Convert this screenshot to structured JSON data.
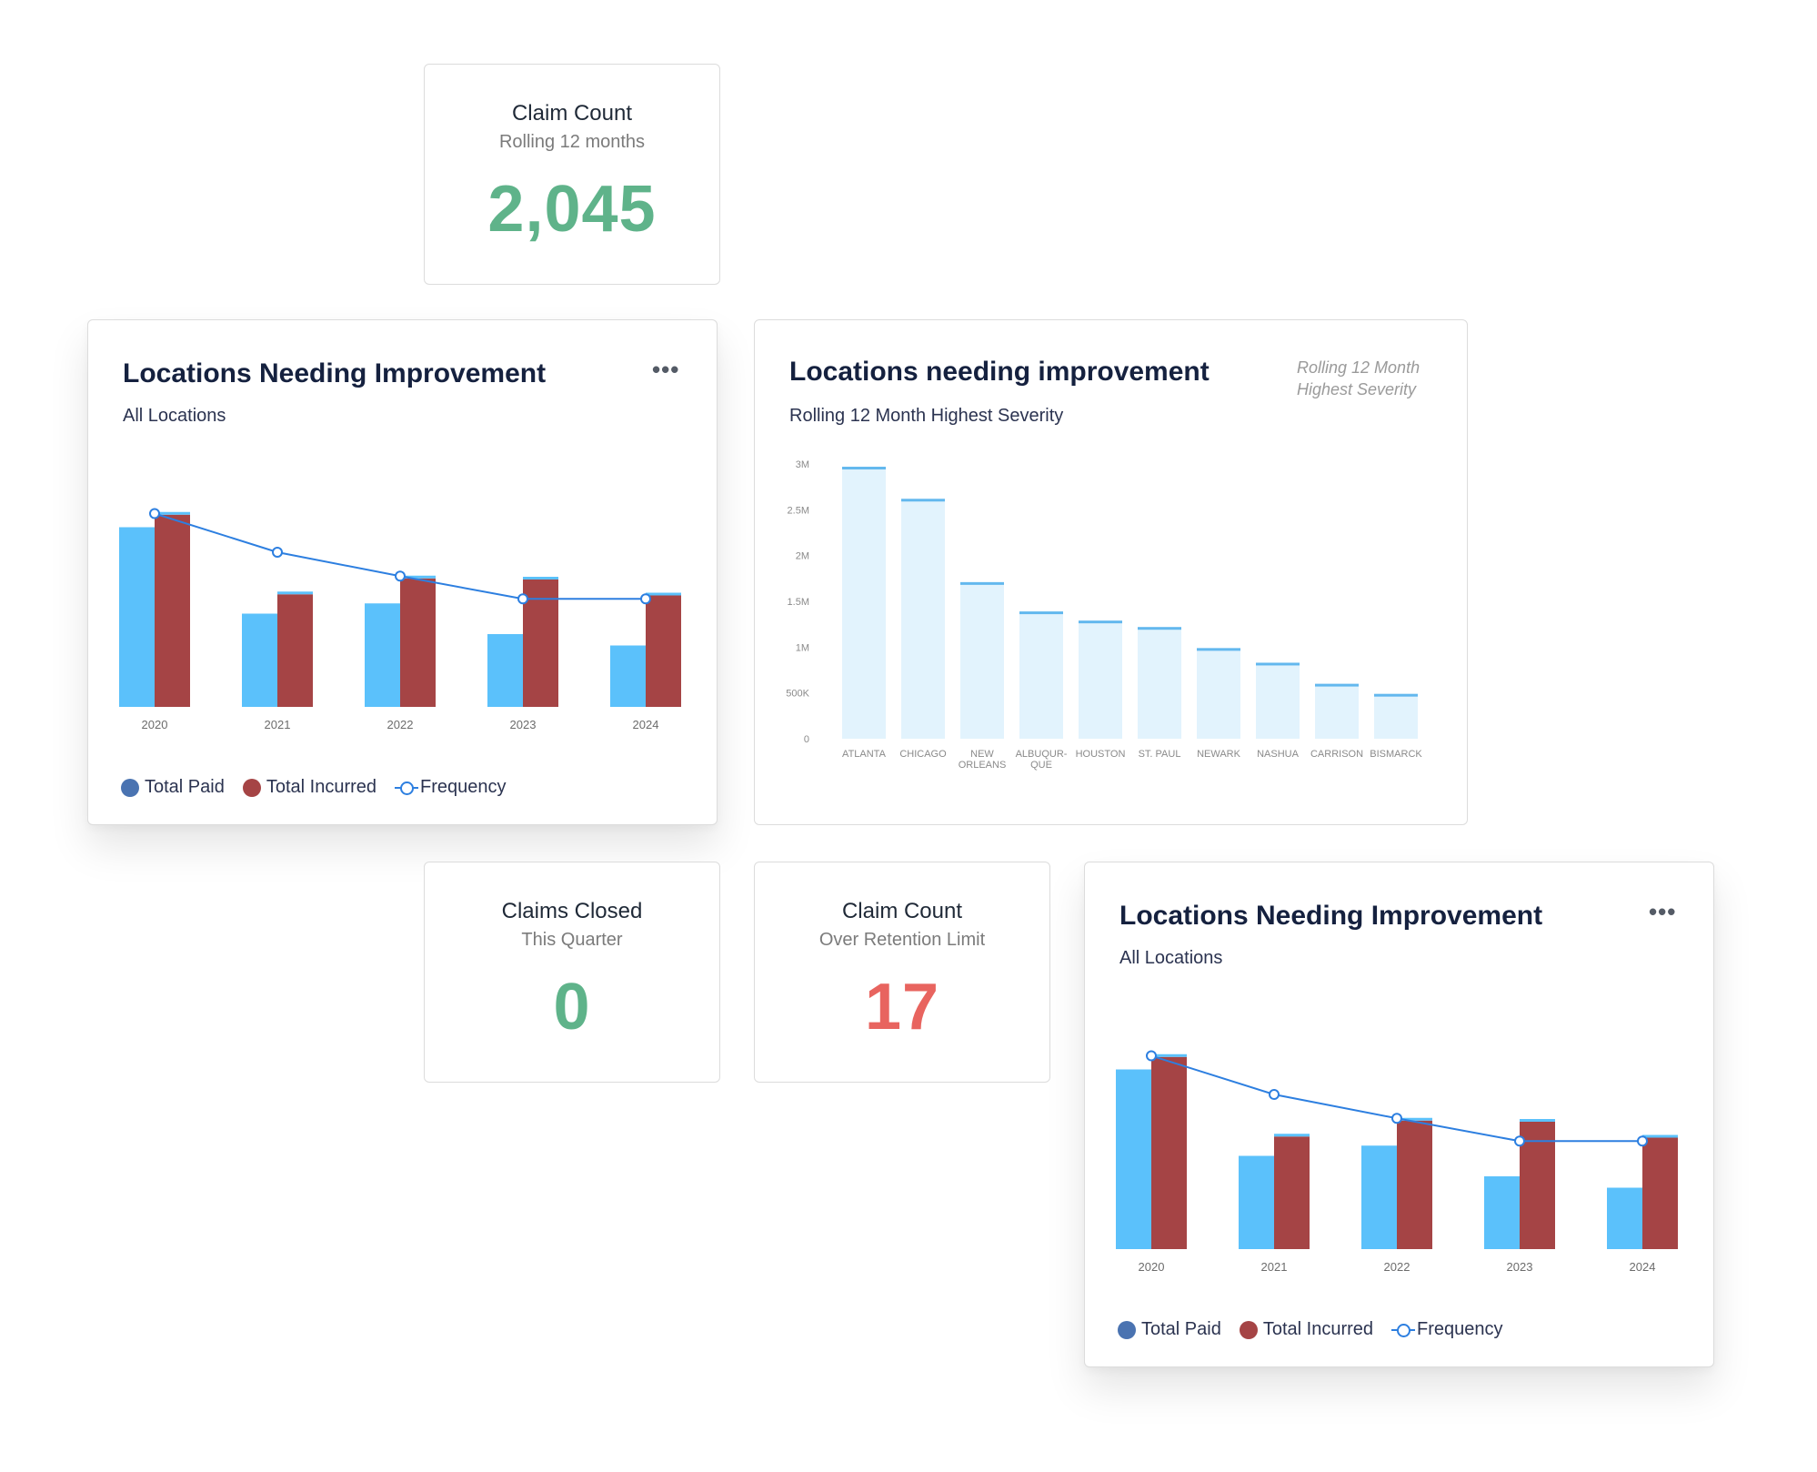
{
  "kpis": {
    "claim_count": {
      "title": "Claim Count",
      "subtitle": "Rolling 12 months",
      "value": "2,045",
      "color": "#5fb38a"
    },
    "claims_closed": {
      "title": "Claims Closed",
      "subtitle": "This Quarter",
      "value": "0",
      "color": "#5fb38a"
    },
    "claim_count_retention": {
      "title": "Claim Count",
      "subtitle": "Over Retention Limit",
      "value": "17",
      "color": "#e8645f"
    }
  },
  "card_a": {
    "title": "Locations Needing Improvement",
    "subtitle": "All Locations",
    "menu_icon": "more-horizontal-icon"
  },
  "card_b": {
    "title": "Locations needing improvement",
    "subtitle": "Rolling 12 Month Highest Severity",
    "note": "Rolling 12 Month Highest Severity"
  },
  "card_c": {
    "title": "Locations Needing Improvement",
    "subtitle": "All Locations",
    "menu_icon": "more-horizontal-icon"
  },
  "colors": {
    "total_paid": "#5bc1fb",
    "total_incurred": "#a54445",
    "frequency": "#2d7fe0",
    "severity_fill": "#e2f3fd",
    "severity_cap": "#63b8ee",
    "legend_paid_dot": "#4a73b1"
  },
  "chart_data": [
    {
      "type": "bar",
      "categories": [
        "2020",
        "2021",
        "2022",
        "2023",
        "2024"
      ],
      "series": [
        {
          "name": "Total Paid",
          "values": [
            158,
            82,
            91,
            64,
            54
          ]
        },
        {
          "name": "Total Incurred",
          "values": [
            169,
            99,
            113,
            112,
            98
          ]
        },
        {
          "name": "Frequency",
          "values": [
            170,
            136,
            115,
            95,
            95
          ],
          "type": "line"
        }
      ],
      "ylim": [
        0,
        180
      ],
      "legend": "bottom-left"
    },
    {
      "type": "bar",
      "categories": [
        "ATLANTA",
        "CHICAGO",
        "NEW ORLEANS",
        "ALBUQUR-QUE",
        "HOUSTON",
        "ST. PAUL",
        "NEWARK",
        "NASHUA",
        "CARRISON",
        "BISMARCK"
      ],
      "values": [
        2960000,
        2610000,
        1700000,
        1380000,
        1280000,
        1210000,
        980000,
        820000,
        590000,
        480000
      ],
      "yticks": [
        "0",
        "500K",
        "1M",
        "1.5M",
        "2M",
        "2.5M",
        "3M"
      ],
      "ylim": [
        0,
        3000000
      ]
    },
    {
      "type": "bar",
      "categories": [
        "2020",
        "2021",
        "2022",
        "2023",
        "2024"
      ],
      "series": [
        {
          "name": "Total Paid",
          "values": [
            158,
            82,
            91,
            64,
            54
          ]
        },
        {
          "name": "Total Incurred",
          "values": [
            169,
            99,
            113,
            112,
            98
          ]
        },
        {
          "name": "Frequency",
          "values": [
            170,
            136,
            115,
            95,
            95
          ],
          "type": "line"
        }
      ],
      "ylim": [
        0,
        180
      ],
      "legend": "bottom-left"
    }
  ]
}
